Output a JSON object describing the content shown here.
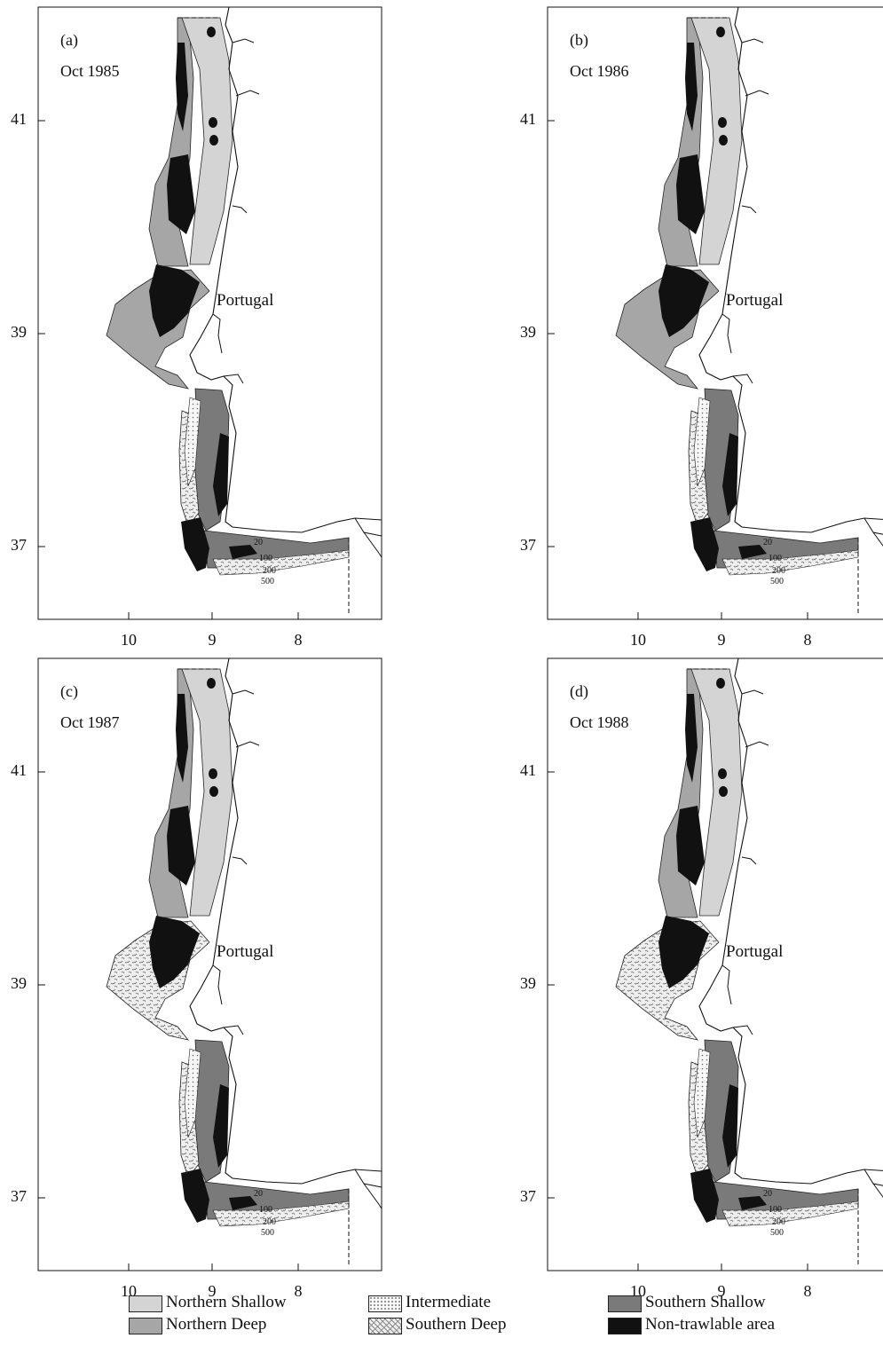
{
  "panels": [
    {
      "label": "(a)",
      "date": "Oct 1985",
      "country": "Portugal"
    },
    {
      "label": "(b)",
      "date": "Oct 1986",
      "country": "Portugal"
    },
    {
      "label": "(c)",
      "date": "Oct 1987",
      "country": "Portugal"
    },
    {
      "label": "(d)",
      "date": "Oct 1988",
      "country": "Portugal"
    }
  ],
  "axes": {
    "lat_ticks": [
      "41",
      "39",
      "37"
    ],
    "lon_ticks": [
      "10",
      "9",
      "8"
    ]
  },
  "depth_labels": [
    "20",
    "100",
    "200",
    "500"
  ],
  "legend": [
    {
      "label": "Northern Shallow",
      "color": "#d4d4d4",
      "pattern": "solid"
    },
    {
      "label": "Northern Deep",
      "color": "#a6a6a6",
      "pattern": "solid"
    },
    {
      "label": "Intermediate",
      "color": "#f4f4f4",
      "pattern": "dots"
    },
    {
      "label": "Southern Deep",
      "color": "#e8e8e8",
      "pattern": "squiggle"
    },
    {
      "label": "Southern Shallow",
      "color": "#7a7a7a",
      "pattern": "solid"
    },
    {
      "label": "Non-trawlable area",
      "color": "#111111",
      "pattern": "solid"
    }
  ]
}
